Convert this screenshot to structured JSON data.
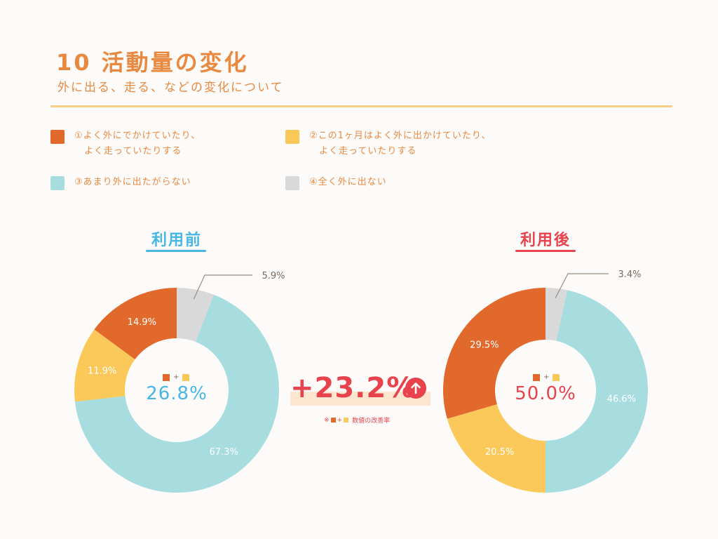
{
  "header": {
    "title": "10 活動量の変化",
    "subtitle": "外に出る、走る、などの変化について"
  },
  "legend": [
    {
      "label": "①よく外にでかけていたり、\n　よく走っていたりする",
      "color": "#e2692c"
    },
    {
      "label": "②この1ヶ月はよく外に出かけていたり、\n　よく走っていたりする",
      "color": "#fbc95a"
    },
    {
      "label": "③あまり外に出たがらない",
      "color": "#a8dde0"
    },
    {
      "label": "④全く外に出ない",
      "color": "#d9d9d9"
    }
  ],
  "colors": {
    "title": "#e9893f",
    "legend_text": "#e9893f",
    "before_accent": "#47b6e3",
    "after_accent": "#e8434c",
    "diff": "#e8434c",
    "band": "#fce6cf",
    "small_label": "#7a6a5e",
    "leader": "#9c8b7e",
    "slice_text": "#ffffff"
  },
  "chart_data": [
    {
      "type": "pie",
      "title": "利用前",
      "categories": [
        "①",
        "②",
        "③",
        "④"
      ],
      "values": [
        14.9,
        11.9,
        67.3,
        5.9
      ],
      "value_labels": [
        "14.9%",
        "11.9%",
        "67.3%",
        "5.9%"
      ],
      "center_value": "26.8%",
      "center_key": "+"
    },
    {
      "type": "pie",
      "title": "利用後",
      "categories": [
        "①",
        "②",
        "③",
        "④"
      ],
      "values": [
        29.5,
        20.5,
        46.6,
        3.4
      ],
      "value_labels": [
        "29.5%",
        "20.5%",
        "46.6%",
        "3.4%"
      ],
      "center_value": "50.0%",
      "center_key": "+"
    }
  ],
  "comparison": {
    "value": "+23.2%",
    "note_prefix": "※",
    "note_plus": "+",
    "note_suffix": "数値の改善率"
  }
}
